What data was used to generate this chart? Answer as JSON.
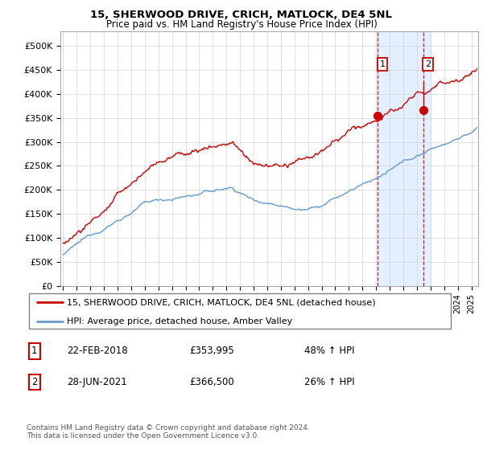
{
  "title": "15, SHERWOOD DRIVE, CRICH, MATLOCK, DE4 5NL",
  "subtitle": "Price paid vs. HM Land Registry's House Price Index (HPI)",
  "legend_line1": "15, SHERWOOD DRIVE, CRICH, MATLOCK, DE4 5NL (detached house)",
  "legend_line2": "HPI: Average price, detached house, Amber Valley",
  "sale1_date": "22-FEB-2018",
  "sale1_price": "£353,995",
  "sale1_hpi": "48% ↑ HPI",
  "sale2_date": "28-JUN-2021",
  "sale2_price": "£366,500",
  "sale2_hpi": "26% ↑ HPI",
  "footer": "Contains HM Land Registry data © Crown copyright and database right 2024.\nThis data is licensed under the Open Government Licence v3.0.",
  "sale1_year": 2018.13,
  "sale1_value": 353995,
  "sale2_year": 2021.49,
  "sale2_value": 366500,
  "red_color": "#cc0000",
  "blue_color": "#6699cc",
  "highlight_bg": "#ddeeff",
  "vline_color": "#cc0000",
  "yticks": [
    0,
    50000,
    100000,
    150000,
    200000,
    250000,
    300000,
    350000,
    400000,
    450000,
    500000
  ],
  "xmin": 1994.8,
  "xmax": 2025.5,
  "ymin": 0,
  "ymax": 530000
}
